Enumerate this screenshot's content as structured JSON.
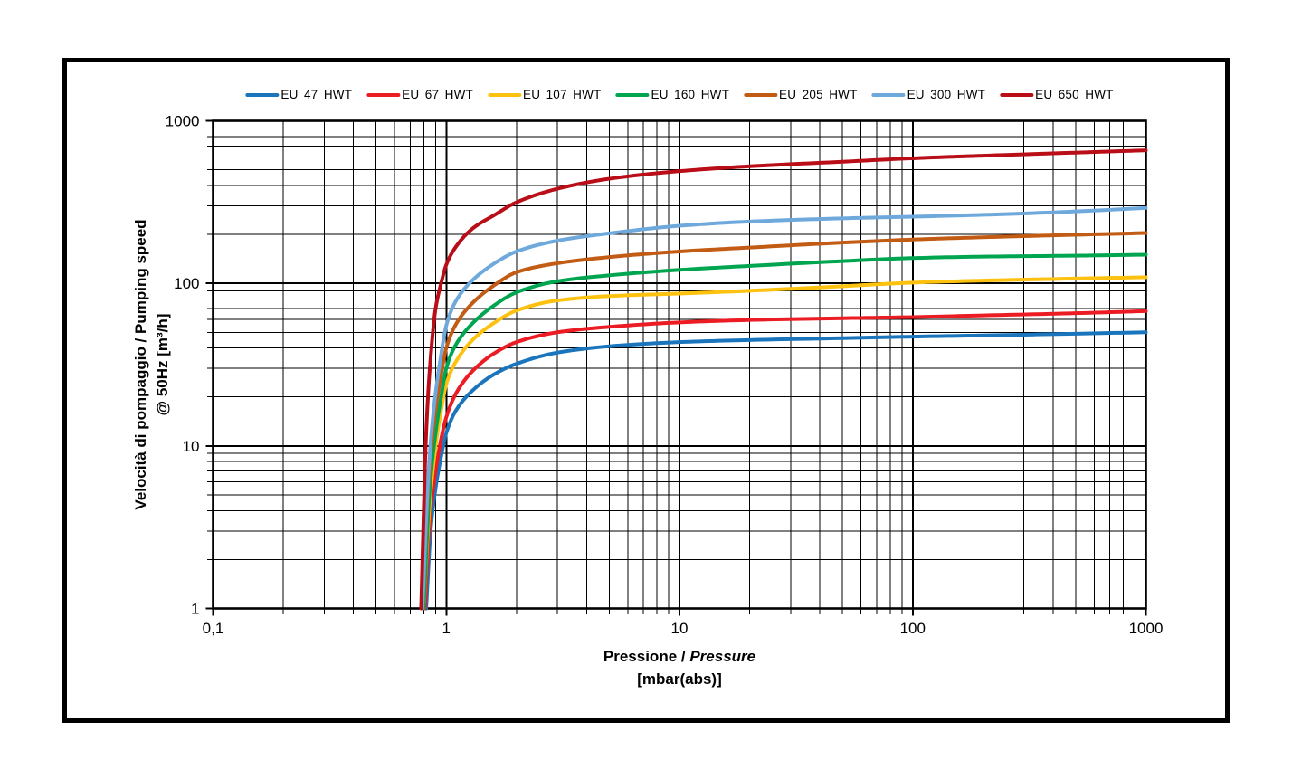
{
  "chart_data": {
    "type": "line",
    "title": "",
    "x_scale": "log",
    "y_scale": "log",
    "xlim": [
      0.1,
      1000
    ],
    "ylim": [
      1,
      1000
    ],
    "xlabel_normal": "Pressione / ",
    "xlabel_italic": "Pressure",
    "xlabel_line2": "[mbar(abs)]",
    "ylabel_line1": "Velocità di pompaggio / Pumping speed",
    "ylabel_line2": "@ 50Hz [m³/h]",
    "x_tick_values": [
      0.1,
      1,
      10,
      100,
      1000
    ],
    "x_tick_labels": [
      "0,1",
      "1",
      "10",
      "100",
      "1000"
    ],
    "y_tick_values": [
      1,
      10,
      100,
      1000
    ],
    "y_tick_labels": [
      "1",
      "10",
      "100",
      "1000"
    ],
    "grid": {
      "major": true,
      "minor": true,
      "color": "#000000",
      "major_width": 2,
      "minor_width": 1
    },
    "legend_position": "top",
    "axis_color": "#000000",
    "background_color": "#ffffff",
    "frame_border_color": "#000000",
    "line_width": 4,
    "series": [
      {
        "name": "EU 47 HWT",
        "color": "#1B75BC",
        "points": [
          [
            0.82,
            1
          ],
          [
            0.86,
            3.2
          ],
          [
            0.9,
            5.5
          ],
          [
            0.95,
            8.6
          ],
          [
            1.0,
            12
          ],
          [
            1.1,
            16.5
          ],
          [
            1.3,
            22
          ],
          [
            1.6,
            27.5
          ],
          [
            2,
            32
          ],
          [
            3,
            37.5
          ],
          [
            5,
            41
          ],
          [
            10,
            43.5
          ],
          [
            20,
            44.8
          ],
          [
            50,
            46
          ],
          [
            100,
            47
          ],
          [
            200,
            47.8
          ],
          [
            500,
            49
          ],
          [
            1000,
            50
          ]
        ]
      },
      {
        "name": "EU 67 HWT",
        "color": "#EC1C24",
        "points": [
          [
            0.81,
            1
          ],
          [
            0.85,
            3.5
          ],
          [
            0.9,
            7
          ],
          [
            0.95,
            11
          ],
          [
            1.0,
            15
          ],
          [
            1.1,
            21
          ],
          [
            1.3,
            29
          ],
          [
            1.6,
            37
          ],
          [
            2,
            43.5
          ],
          [
            3,
            50
          ],
          [
            5,
            54
          ],
          [
            10,
            57.5
          ],
          [
            20,
            59.5
          ],
          [
            50,
            61
          ],
          [
            100,
            62
          ],
          [
            200,
            63.5
          ],
          [
            500,
            65.5
          ],
          [
            1000,
            67.5
          ]
        ]
      },
      {
        "name": "EU 107 HWT",
        "color": "#FDC110",
        "points": [
          [
            0.8,
            1
          ],
          [
            0.85,
            4.5
          ],
          [
            0.9,
            10
          ],
          [
            0.95,
            16.5
          ],
          [
            1.0,
            24
          ],
          [
            1.1,
            33
          ],
          [
            1.3,
            45
          ],
          [
            1.6,
            57
          ],
          [
            2,
            68
          ],
          [
            3,
            78.5
          ],
          [
            5,
            83.5
          ],
          [
            10,
            86.5
          ],
          [
            20,
            90
          ],
          [
            50,
            96
          ],
          [
            100,
            101
          ],
          [
            200,
            104
          ],
          [
            500,
            107
          ],
          [
            1000,
            109
          ]
        ]
      },
      {
        "name": "EU 160 HWT",
        "color": "#00A550",
        "points": [
          [
            0.8,
            1
          ],
          [
            0.85,
            5.5
          ],
          [
            0.9,
            12
          ],
          [
            0.95,
            20
          ],
          [
            1.0,
            30
          ],
          [
            1.1,
            42
          ],
          [
            1.3,
            57
          ],
          [
            1.6,
            73
          ],
          [
            2,
            88
          ],
          [
            3,
            103
          ],
          [
            5,
            112
          ],
          [
            10,
            121
          ],
          [
            20,
            128
          ],
          [
            50,
            137
          ],
          [
            100,
            143
          ],
          [
            200,
            146
          ],
          [
            500,
            148
          ],
          [
            1000,
            150
          ]
        ]
      },
      {
        "name": "EU 205 HWT",
        "color": "#C25B13",
        "points": [
          [
            0.79,
            1
          ],
          [
            0.84,
            6
          ],
          [
            0.88,
            13
          ],
          [
            0.94,
            25
          ],
          [
            1.0,
            40
          ],
          [
            1.1,
            56
          ],
          [
            1.3,
            76
          ],
          [
            1.6,
            97
          ],
          [
            2,
            117
          ],
          [
            3,
            133
          ],
          [
            5,
            145
          ],
          [
            10,
            157
          ],
          [
            20,
            166
          ],
          [
            50,
            178
          ],
          [
            100,
            186
          ],
          [
            200,
            192
          ],
          [
            500,
            199
          ],
          [
            1000,
            204
          ]
        ]
      },
      {
        "name": "EU 300 HWT",
        "color": "#6FA9DC",
        "points": [
          [
            0.79,
            1
          ],
          [
            0.84,
            7
          ],
          [
            0.88,
            16
          ],
          [
            0.94,
            33
          ],
          [
            1.0,
            55
          ],
          [
            1.1,
            78
          ],
          [
            1.3,
            105
          ],
          [
            1.6,
            132
          ],
          [
            2,
            157
          ],
          [
            3,
            183
          ],
          [
            5,
            203
          ],
          [
            10,
            226
          ],
          [
            20,
            240
          ],
          [
            50,
            251
          ],
          [
            100,
            257
          ],
          [
            200,
            264
          ],
          [
            500,
            277
          ],
          [
            1000,
            291
          ]
        ]
      },
      {
        "name": "EU 650 HWT",
        "color": "#B90E17",
        "points": [
          [
            0.78,
            1
          ],
          [
            0.82,
            12
          ],
          [
            0.85,
            30
          ],
          [
            0.9,
            70
          ],
          [
            0.95,
            100
          ],
          [
            1.0,
            130
          ],
          [
            1.1,
            168
          ],
          [
            1.3,
            218
          ],
          [
            1.6,
            262
          ],
          [
            2,
            315
          ],
          [
            3,
            382
          ],
          [
            5,
            440
          ],
          [
            10,
            490
          ],
          [
            20,
            525
          ],
          [
            50,
            560
          ],
          [
            100,
            588
          ],
          [
            200,
            610
          ],
          [
            500,
            637
          ],
          [
            1000,
            658
          ]
        ]
      }
    ]
  }
}
